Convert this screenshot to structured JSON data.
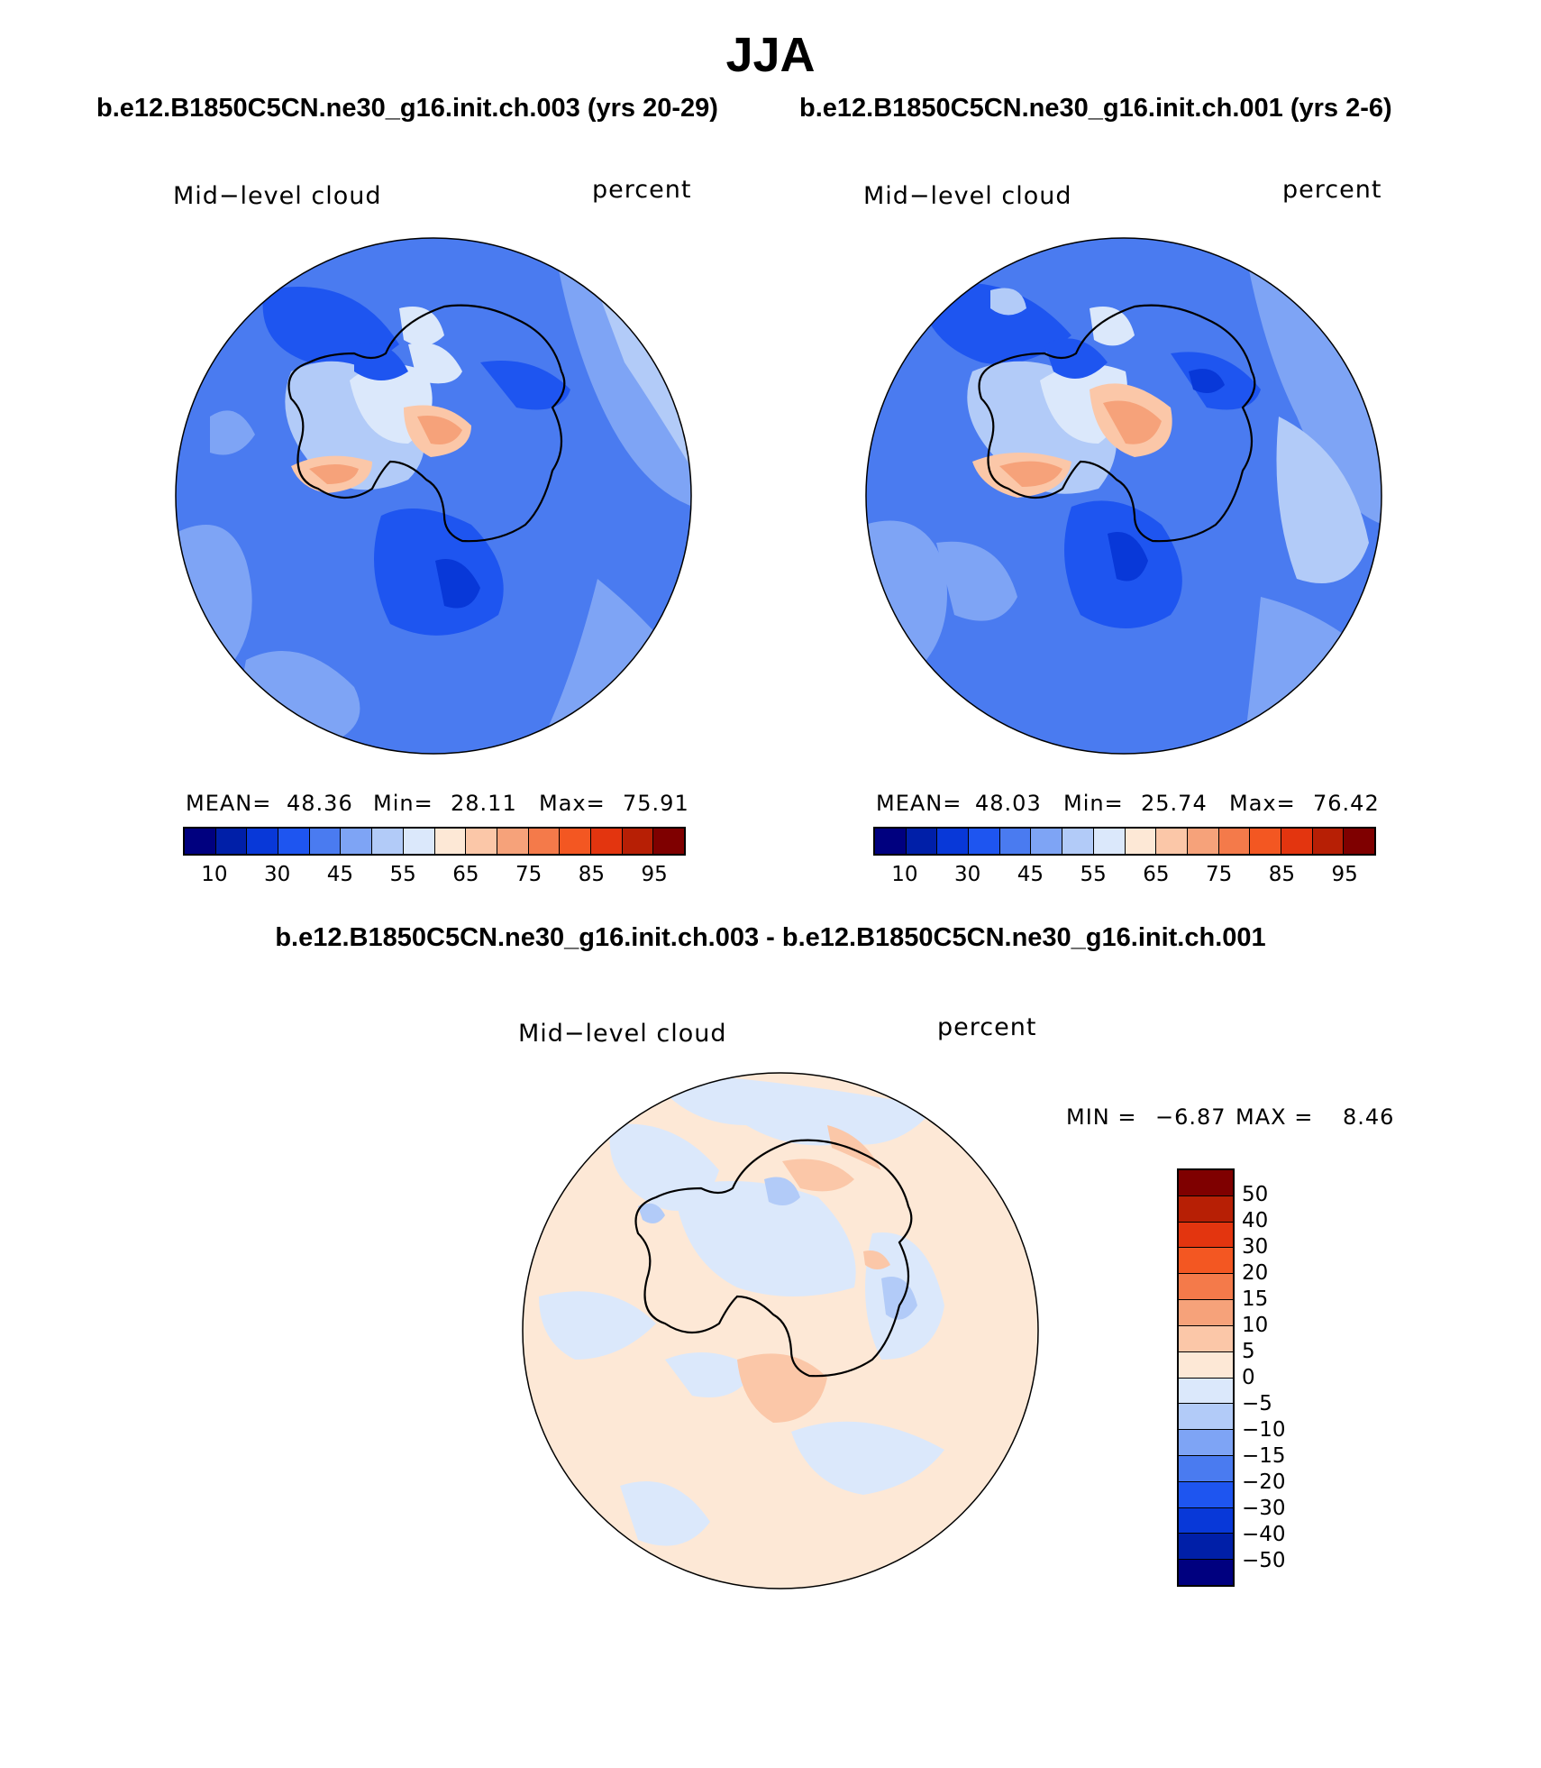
{
  "page_title": "JJA",
  "colors": {
    "abs_scale": [
      "#00007f",
      "#001fa8",
      "#0838d8",
      "#1e55f0",
      "#4a7bf0",
      "#7ea4f5",
      "#b2cbf8",
      "#dbe8fb",
      "#fde8d6",
      "#fbc7a8",
      "#f6a27a",
      "#f47a4a",
      "#f35722",
      "#e3350f",
      "#b71f05",
      "#7f0000"
    ],
    "diff_scale": [
      "#7f0000",
      "#b71f05",
      "#e3350f",
      "#f35722",
      "#f47a4a",
      "#f6a27a",
      "#fbc7a8",
      "#fde8d6",
      "#dbe8fb",
      "#b2cbf8",
      "#7ea4f5",
      "#4a7bf0",
      "#1e55f0",
      "#0838d8",
      "#001fa8",
      "#00007f"
    ]
  },
  "panels": [
    {
      "case_title": "b.e12.B1850C5CN.ne30_g16.init.ch.003 (yrs 20-29)",
      "variable": "Mid−level cloud",
      "units": "percent",
      "mean_label": "MEAN=",
      "mean": "48.36",
      "min_label": "Min=",
      "min": "28.11",
      "max_label": "Max=",
      "max": "75.91",
      "ticks": [
        "10",
        "30",
        "45",
        "55",
        "65",
        "75",
        "85",
        "95"
      ]
    },
    {
      "case_title": "b.e12.B1850C5CN.ne30_g16.init.ch.001 (yrs 2-6)",
      "variable": "Mid−level cloud",
      "units": "percent",
      "mean_label": "MEAN=",
      "mean": "48.03",
      "min_label": "Min=",
      "min": "25.74",
      "max_label": "Max=",
      "max": "76.42",
      "ticks": [
        "10",
        "30",
        "45",
        "55",
        "65",
        "75",
        "85",
        "95"
      ]
    }
  ],
  "difference": {
    "title": "b.e12.B1850C5CN.ne30_g16.init.ch.003 - b.e12.B1850C5CN.ne30_g16.init.ch.001",
    "variable": "Mid−level cloud",
    "units": "percent",
    "min_label": "MIN =",
    "min": "−6.87",
    "max_label": "MAX =",
    "max": "8.46",
    "ticks": [
      "50",
      "40",
      "30",
      "20",
      "15",
      "10",
      "5",
      "0",
      "−5",
      "−10",
      "−15",
      "−20",
      "−30",
      "−40",
      "−50"
    ]
  }
}
